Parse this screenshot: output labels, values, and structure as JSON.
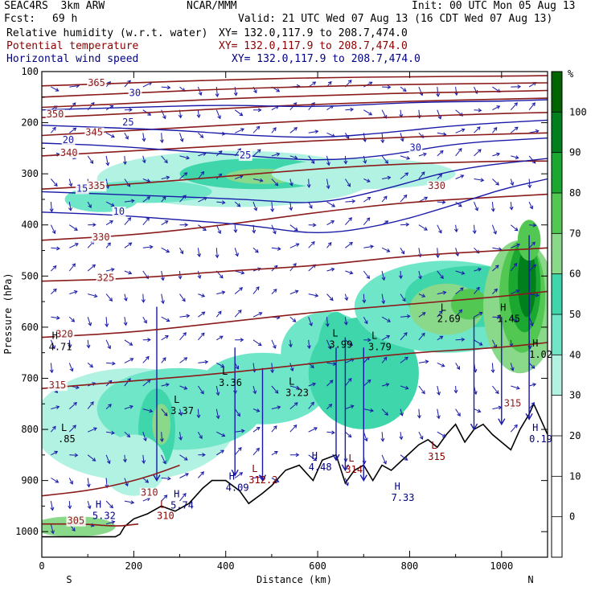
{
  "header": {
    "model": "SEAC4RS  3km ARW",
    "center": "NCAR/MMM",
    "init": "Init: 00 UTC Mon 05 Aug 13",
    "fcst_label": "Fcst:",
    "fcst_value": "69 h",
    "valid": "Valid: 21 UTC Wed 07 Aug 13 (16 CDT Wed 07 Aug 13)",
    "fields": [
      {
        "name": "Relative humidity (w.r.t. water)",
        "xy": "XY= 132.0,117.9 to 208.7,474.0",
        "color": "#000000"
      },
      {
        "name": "Potential temperature",
        "xy": "XY= 132.0,117.9 to 208.7,474.0",
        "color": "#8b0000"
      },
      {
        "name": "Horizontal wind speed",
        "xy": "XY= 132.0,117.9 to 208.7,474.0",
        "color": "#000080"
      }
    ]
  },
  "chart_data": {
    "type": "heatmap",
    "xlabel": "Distance (km)",
    "ylabel": "Pressure (hPa)",
    "x_ticks": [
      "0",
      "200",
      "400",
      "600",
      "800",
      "1000"
    ],
    "y_ticks": [
      "100",
      "200",
      "300",
      "400",
      "500",
      "600",
      "700",
      "800",
      "900",
      "1000"
    ],
    "xlim": [
      0,
      1100
    ],
    "ylim": [
      1050,
      100
    ],
    "x_endpoints": {
      "left": "S",
      "right": "N"
    },
    "colorbar": {
      "unit": "%",
      "levels": [
        "100",
        "90",
        "80",
        "70",
        "60",
        "50",
        "40",
        "30",
        "20",
        "10",
        "0"
      ],
      "colors": [
        "#006400",
        "#00801c",
        "#1aa830",
        "#52c852",
        "#8ad88a",
        "#3ed6aa",
        "#70e6c8",
        "#b2f2e2",
        "#ffffff",
        "#ffffff",
        "#ffffff",
        "#ffffff"
      ]
    },
    "theta_contours": [
      {
        "label": "305",
        "points": [
          [
            0,
            985
          ],
          [
            100,
            985
          ],
          [
            160,
            990
          ],
          [
            210,
            985
          ]
        ]
      },
      {
        "label": "310",
        "points": [
          [
            0,
            930
          ],
          [
            100,
            920
          ],
          [
            180,
            905
          ],
          [
            240,
            890
          ],
          [
            300,
            870
          ]
        ]
      },
      {
        "label": "315",
        "points": [
          [
            0,
            720
          ],
          [
            200,
            705
          ],
          [
            400,
            690
          ],
          [
            600,
            670
          ],
          [
            800,
            650
          ],
          [
            1000,
            640
          ],
          [
            1100,
            630
          ]
        ]
      },
      {
        "label": "320",
        "points": [
          [
            0,
            620
          ],
          [
            200,
            610
          ],
          [
            400,
            590
          ],
          [
            600,
            570
          ],
          [
            800,
            555
          ],
          [
            1000,
            540
          ],
          [
            1100,
            530
          ]
        ]
      },
      {
        "label": "325",
        "points": [
          [
            0,
            510
          ],
          [
            200,
            505
          ],
          [
            400,
            490
          ],
          [
            600,
            480
          ],
          [
            800,
            460
          ],
          [
            1000,
            450
          ],
          [
            1100,
            445
          ]
        ]
      },
      {
        "label": "330",
        "points": [
          [
            0,
            430
          ],
          [
            200,
            420
          ],
          [
            400,
            400
          ],
          [
            600,
            375
          ],
          [
            800,
            355
          ],
          [
            1000,
            345
          ],
          [
            1100,
            340
          ]
        ]
      },
      {
        "label": "335",
        "points": [
          [
            0,
            330
          ],
          [
            200,
            320
          ],
          [
            400,
            305
          ],
          [
            600,
            290
          ],
          [
            800,
            280
          ],
          [
            1000,
            275
          ],
          [
            1100,
            275
          ]
        ]
      },
      {
        "label": "340",
        "points": [
          [
            0,
            265
          ],
          [
            200,
            255
          ],
          [
            400,
            245
          ],
          [
            600,
            235
          ],
          [
            800,
            228
          ],
          [
            1000,
            222
          ],
          [
            1100,
            220
          ]
        ]
      },
      {
        "label": "345",
        "points": [
          [
            0,
            225
          ],
          [
            200,
            215
          ],
          [
            400,
            205
          ],
          [
            600,
            195
          ],
          [
            800,
            188
          ],
          [
            1000,
            182
          ],
          [
            1100,
            180
          ]
        ]
      },
      {
        "label": "350",
        "points": [
          [
            0,
            190
          ],
          [
            200,
            182
          ],
          [
            400,
            172
          ],
          [
            600,
            164
          ],
          [
            800,
            158
          ],
          [
            1000,
            154
          ],
          [
            1100,
            152
          ]
        ]
      },
      {
        "label": "355",
        "points": [
          [
            0,
            170
          ],
          [
            200,
            162
          ],
          [
            400,
            153
          ],
          [
            600,
            147
          ],
          [
            800,
            142
          ],
          [
            1000,
            139
          ],
          [
            1100,
            137
          ]
        ]
      },
      {
        "label": "360",
        "points": [
          [
            0,
            150
          ],
          [
            200,
            142
          ],
          [
            400,
            134
          ],
          [
            600,
            129
          ],
          [
            800,
            125
          ],
          [
            1000,
            123
          ],
          [
            1100,
            122
          ]
        ]
      },
      {
        "label": "365",
        "points": [
          [
            0,
            128
          ],
          [
            200,
            122
          ],
          [
            400,
            116
          ],
          [
            600,
            112
          ],
          [
            800,
            110
          ],
          [
            1000,
            109
          ],
          [
            1100,
            108
          ]
        ]
      }
    ],
    "speed_contours": [
      {
        "label": "10",
        "points": [
          [
            0,
            375
          ],
          [
            150,
            380
          ],
          [
            300,
            390
          ],
          [
            450,
            400
          ],
          [
            600,
            420
          ],
          [
            750,
            400
          ],
          [
            900,
            360
          ],
          [
            1000,
            330
          ],
          [
            1100,
            310
          ]
        ]
      },
      {
        "label": "15",
        "points": [
          [
            0,
            335
          ],
          [
            150,
            340
          ],
          [
            300,
            345
          ],
          [
            450,
            350
          ],
          [
            600,
            360
          ],
          [
            750,
            330
          ],
          [
            900,
            290
          ],
          [
            1100,
            270
          ]
        ]
      },
      {
        "label": "20",
        "points": [
          [
            0,
            240
          ],
          [
            150,
            245
          ],
          [
            300,
            255
          ],
          [
            450,
            265
          ],
          [
            600,
            275
          ],
          [
            750,
            265
          ],
          [
            900,
            240
          ],
          [
            1100,
            230
          ]
        ]
      },
      {
        "label": "25",
        "points": [
          [
            0,
            205
          ],
          [
            150,
            210
          ],
          [
            300,
            215
          ],
          [
            450,
            225
          ],
          [
            600,
            230
          ],
          [
            750,
            220
          ],
          [
            900,
            205
          ],
          [
            1100,
            195
          ]
        ]
      },
      {
        "label": "30",
        "points": [
          [
            0,
            175
          ],
          [
            200,
            170
          ],
          [
            400,
            165
          ],
          [
            600,
            170
          ],
          [
            800,
            160
          ],
          [
            1000,
            158
          ],
          [
            1100,
            155
          ]
        ]
      }
    ],
    "theta_labels": [
      {
        "text": "365",
        "x": 100,
        "p": 128
      },
      {
        "text": "350",
        "x": 10,
        "p": 190
      },
      {
        "text": "345",
        "x": 95,
        "p": 225
      },
      {
        "text": "340",
        "x": 40,
        "p": 265
      },
      {
        "text": "335",
        "x": 100,
        "p": 330
      },
      {
        "text": "330",
        "x": 110,
        "p": 430
      },
      {
        "text": "325",
        "x": 120,
        "p": 510
      },
      {
        "text": "320",
        "x": 30,
        "p": 620
      },
      {
        "text": "315",
        "x": 15,
        "p": 720
      },
      {
        "text": "310",
        "x": 215,
        "p": 930
      },
      {
        "text": "305",
        "x": 55,
        "p": 985
      },
      {
        "text": "330",
        "x": 840,
        "p": 330
      },
      {
        "text": "315",
        "x": 1005,
        "p": 755
      }
    ],
    "speed_labels": [
      {
        "text": "30",
        "x": 190,
        "p": 148
      },
      {
        "text": "25",
        "x": 175,
        "p": 205
      },
      {
        "text": "20",
        "x": 45,
        "p": 240
      },
      {
        "text": "15",
        "x": 75,
        "p": 335
      },
      {
        "text": "10",
        "x": 155,
        "p": 380
      },
      {
        "text": "25",
        "x": 430,
        "p": 270
      },
      {
        "text": "30",
        "x": 800,
        "p": 255
      }
    ],
    "extrema": [
      {
        "kind": "H",
        "value": "4.71",
        "x": 15,
        "p": 645,
        "color": "#000000"
      },
      {
        "kind": "L",
        "value": ".85",
        "x": 35,
        "p": 825,
        "color": "#000000"
      },
      {
        "kind": "L",
        "value": "3.37",
        "x": 280,
        "p": 770,
        "color": "#000000"
      },
      {
        "kind": "L",
        "value": "3.36",
        "x": 385,
        "p": 715,
        "color": "#000000"
      },
      {
        "kind": "L",
        "value": "3.23",
        "x": 530,
        "p": 735,
        "color": "#000000"
      },
      {
        "kind": "L",
        "value": "3.99",
        "x": 625,
        "p": 640,
        "color": "#000000"
      },
      {
        "kind": "L",
        "value": "3.79",
        "x": 710,
        "p": 645,
        "color": "#000000"
      },
      {
        "kind": "L",
        "value": "2.69",
        "x": 860,
        "p": 590,
        "color": "#000000"
      },
      {
        "kind": "H",
        "value": "1.45",
        "x": 990,
        "p": 590,
        "color": "#000000"
      },
      {
        "kind": "H",
        "value": "1.02",
        "x": 1060,
        "p": 660,
        "color": "#000000"
      },
      {
        "kind": "H",
        "value": "5.32",
        "x": 110,
        "p": 975,
        "color": "#000080"
      },
      {
        "kind": "H",
        "value": "5.74",
        "x": 280,
        "p": 955,
        "color": "#000080"
      },
      {
        "kind": "H",
        "value": "4.09",
        "x": 400,
        "p": 920,
        "color": "#000080"
      },
      {
        "kind": "H",
        "value": "4.48",
        "x": 580,
        "p": 880,
        "color": "#000080"
      },
      {
        "kind": "H",
        "value": "7.33",
        "x": 760,
        "p": 940,
        "color": "#000080"
      },
      {
        "kind": "H",
        "value": "0.19",
        "x": 1060,
        "p": 825,
        "color": "#000080"
      },
      {
        "kind": "L",
        "value": "312.2",
        "x": 450,
        "p": 905,
        "color": "#8b0000"
      },
      {
        "kind": "L",
        "value": "314",
        "x": 660,
        "p": 885,
        "color": "#8b0000"
      },
      {
        "kind": "L",
        "value": "315",
        "x": 840,
        "p": 860,
        "color": "#8b0000"
      },
      {
        "kind": "L",
        "value": "310",
        "x": 250,
        "p": 975,
        "color": "#8b0000"
      }
    ],
    "terrain": [
      [
        0,
        1010
      ],
      [
        160,
        1010
      ],
      [
        170,
        1005
      ],
      [
        180,
        990
      ],
      [
        200,
        975
      ],
      [
        230,
        965
      ],
      [
        260,
        950
      ],
      [
        290,
        960
      ],
      [
        320,
        945
      ],
      [
        350,
        915
      ],
      [
        370,
        900
      ],
      [
        400,
        900
      ],
      [
        430,
        920
      ],
      [
        450,
        945
      ],
      [
        480,
        925
      ],
      [
        500,
        910
      ],
      [
        530,
        880
      ],
      [
        560,
        870
      ],
      [
        590,
        900
      ],
      [
        610,
        860
      ],
      [
        640,
        850
      ],
      [
        660,
        905
      ],
      [
        680,
        880
      ],
      [
        700,
        870
      ],
      [
        720,
        900
      ],
      [
        740,
        870
      ],
      [
        760,
        880
      ],
      [
        790,
        855
      ],
      [
        820,
        830
      ],
      [
        840,
        820
      ],
      [
        860,
        835
      ],
      [
        880,
        810
      ],
      [
        900,
        790
      ],
      [
        920,
        825
      ],
      [
        940,
        800
      ],
      [
        960,
        790
      ],
      [
        980,
        810
      ],
      [
        1000,
        825
      ],
      [
        1020,
        840
      ],
      [
        1040,
        800
      ],
      [
        1060,
        770
      ],
      [
        1070,
        750
      ],
      [
        1090,
        790
      ],
      [
        1100,
        810
      ]
    ]
  }
}
